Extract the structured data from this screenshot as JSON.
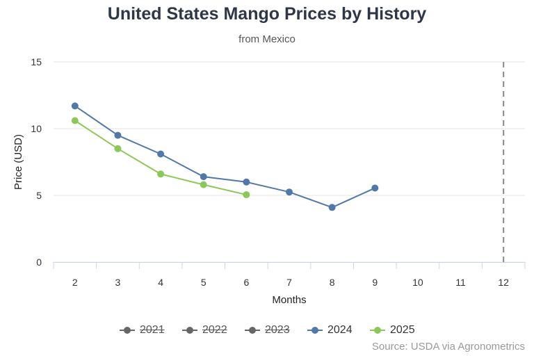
{
  "header": {
    "title": "United States Mango Prices by History",
    "subtitle": "from Mexico"
  },
  "footer": {
    "source": "Source: USDA via Agronometrics"
  },
  "legend": [
    {
      "label": "2021",
      "color": "#666666",
      "hidden": true
    },
    {
      "label": "2022",
      "color": "#666666",
      "hidden": true
    },
    {
      "label": "2023",
      "color": "#666666",
      "hidden": true
    },
    {
      "label": "2024",
      "color": "#5078a8",
      "hidden": false
    },
    {
      "label": "2025",
      "color": "#8cc858",
      "hidden": false
    }
  ],
  "chart_data": {
    "type": "line",
    "title": "United States Mango Prices by History",
    "subtitle": "from Mexico",
    "xlabel": "Months",
    "ylabel": "Price (USD)",
    "x": [
      2,
      3,
      4,
      5,
      6,
      7,
      8,
      9,
      10,
      11,
      12
    ],
    "xlim": [
      2,
      12
    ],
    "ylim": [
      0,
      15
    ],
    "yticks": [
      0,
      5,
      10,
      15
    ],
    "grid": "horizontal",
    "legend_position": "bottom",
    "plot_line": {
      "x": 12,
      "style": "dashed",
      "color": "#888888"
    },
    "series": [
      {
        "name": "2021",
        "visible": false,
        "color": "#666666",
        "points": []
      },
      {
        "name": "2022",
        "visible": false,
        "color": "#666666",
        "points": []
      },
      {
        "name": "2023",
        "visible": false,
        "color": "#666666",
        "points": []
      },
      {
        "name": "2024",
        "visible": true,
        "color": "#5078a8",
        "points": [
          [
            2,
            11.7
          ],
          [
            3,
            9.5
          ],
          [
            4,
            8.1
          ],
          [
            5,
            6.4
          ],
          [
            6,
            6.0
          ],
          [
            7,
            5.25
          ],
          [
            8,
            4.1
          ],
          [
            9,
            5.55
          ]
        ]
      },
      {
        "name": "2025",
        "visible": true,
        "color": "#8cc858",
        "points": [
          [
            2,
            10.6
          ],
          [
            3,
            8.5
          ],
          [
            4,
            6.6
          ],
          [
            5,
            5.8
          ],
          [
            6,
            5.05
          ]
        ]
      }
    ]
  }
}
